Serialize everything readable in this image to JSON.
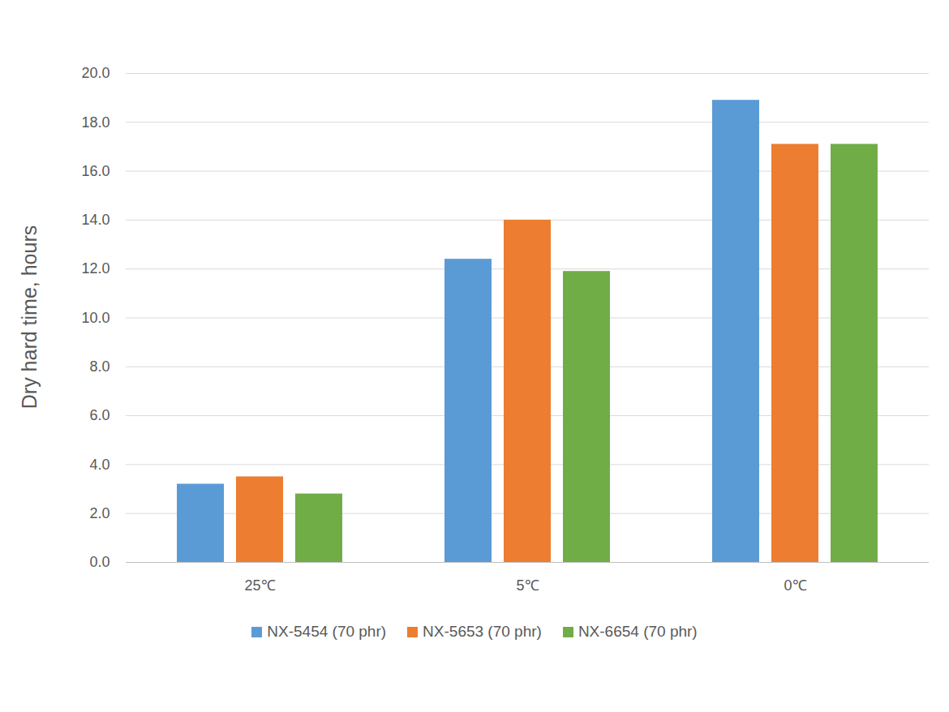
{
  "chart_data": {
    "type": "bar",
    "categories": [
      "25℃",
      "5℃",
      "0℃"
    ],
    "series": [
      {
        "name": "NX-5454 (70 phr)",
        "color": "#5b9bd5",
        "values": [
          3.2,
          12.4,
          18.9
        ]
      },
      {
        "name": "NX-5653 (70 phr)",
        "color": "#ed7d31",
        "values": [
          3.5,
          14.0,
          17.1
        ]
      },
      {
        "name": "NX-6654 (70 phr)",
        "color": "#70ad47",
        "values": [
          2.8,
          11.9,
          17.1
        ]
      }
    ],
    "y_label": "Dry hard time, hours",
    "ylim": [
      0,
      20
    ],
    "yticks": [
      {
        "value": 0,
        "label": "0.0"
      },
      {
        "value": 2,
        "label": "2.0"
      },
      {
        "value": 4,
        "label": "4.0"
      },
      {
        "value": 6,
        "label": "6.0"
      },
      {
        "value": 8,
        "label": "8.0"
      },
      {
        "value": 10,
        "label": "10.0"
      },
      {
        "value": 12,
        "label": "12.0"
      },
      {
        "value": 14,
        "label": "14.0"
      },
      {
        "value": 16,
        "label": "16.0"
      },
      {
        "value": 18,
        "label": "18.0"
      },
      {
        "value": 20,
        "label": "20.0"
      }
    ],
    "grid": true,
    "legend": "bottom"
  }
}
